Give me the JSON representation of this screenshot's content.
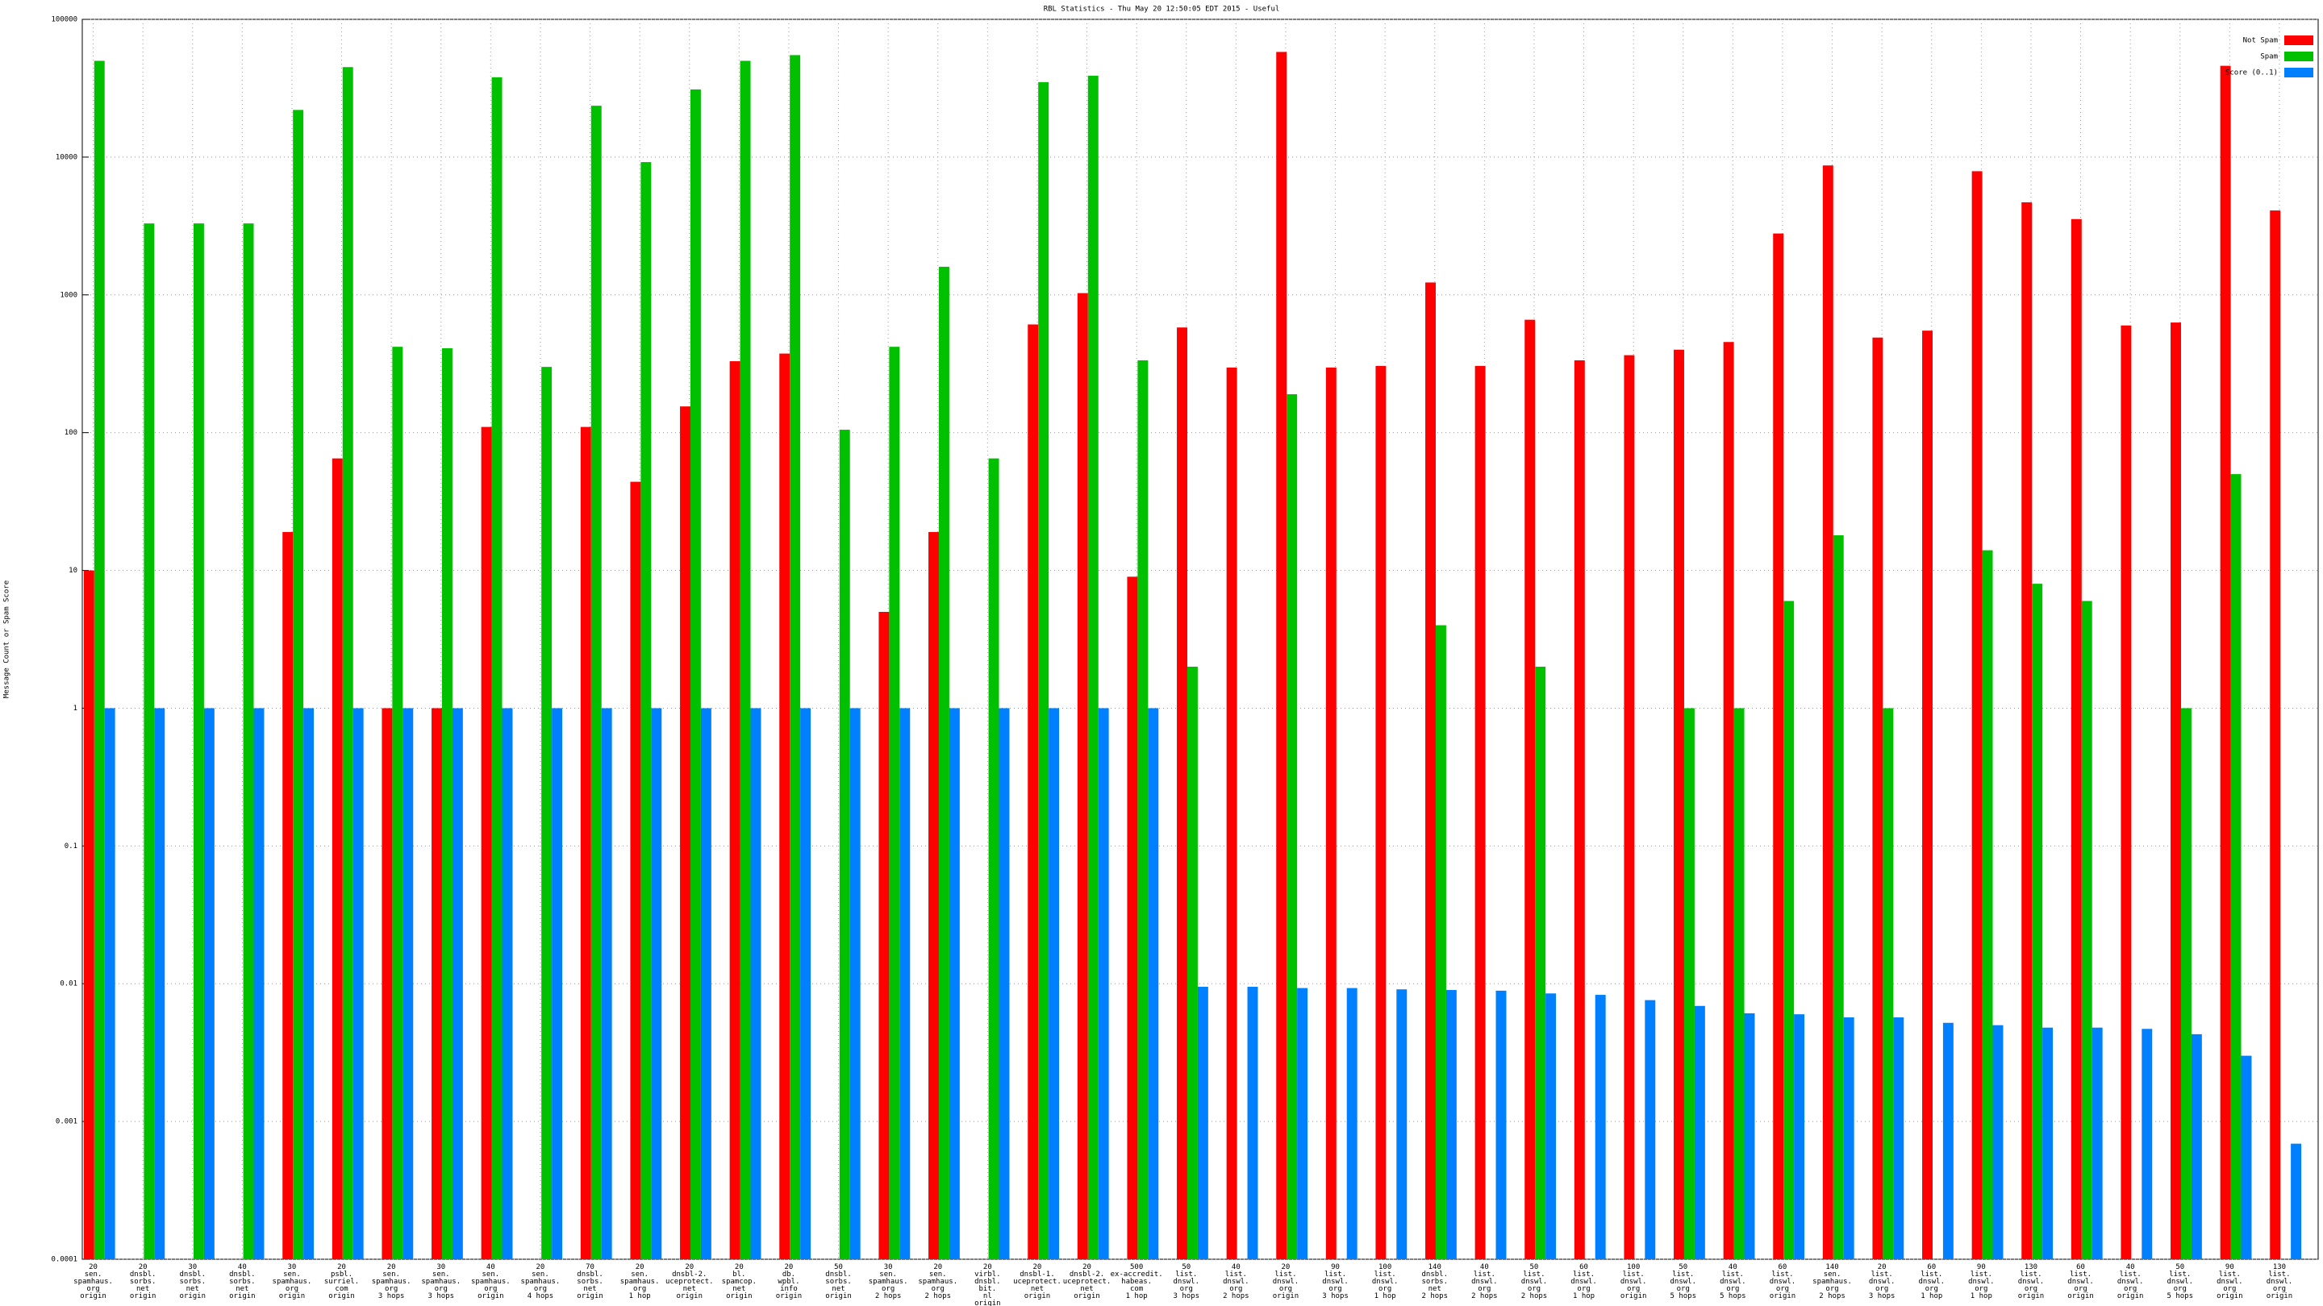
{
  "chart_data": {
    "type": "bar",
    "title": "RBL Statistics - Thu May 20 12:50:05 EDT 2015 - Useful",
    "y_label": "Message Count or Spam Score",
    "log_scale": true,
    "grid": true,
    "legend": "top-right",
    "ylim": [
      0.0001,
      100000
    ],
    "yticks": [
      0.0001,
      0.001,
      0.01,
      0.1,
      1,
      10,
      100,
      1000,
      10000,
      100000
    ],
    "categories": [
      "20\nsen.\nspamhaus.\norg\norigin",
      "20\ndnsbl.\nsorbs.\nnet\norigin",
      "30\ndnsbl.\nsorbs.\nnet\norigin",
      "40\ndnsbl.\nsorbs.\nnet\norigin",
      "30\nsen.\nspamhaus.\norg\norigin",
      "20\npsbl.\nsurriel.\ncom\norigin",
      "20\nsen.\nspamhaus.\norg\n3 hops",
      "30\nsen.\nspamhaus.\norg\n3 hops",
      "40\nsen.\nspamhaus.\norg\norigin",
      "20\nsen.\nspamhaus.\norg\n4 hops",
      "70\ndnsbl.\nsorbs.\nnet\norigin",
      "20\nsen.\nspamhaus.\norg\n1 hop",
      "20\ndnsbl-2.\nuceprotect.\nnet\norigin",
      "20\nbl.\nspamcop.\nnet\norigin",
      "20\ndb.\nwpbl.\ninfo\norigin",
      "50\ndnsbl.\nsorbs.\nnet\norigin",
      "30\nsen.\nspamhaus.\norg\n2 hops",
      "20\nsen.\nspamhaus.\norg\n2 hops",
      "20\nvirbl.\ndnsbl.\nbit.\nnl\norigin",
      "20\ndnsbl-1.\nuceprotect.\nnet\norigin",
      "20\ndnsbl-2.\nuceprotect.\nnet\norigin",
      "500\nex-accredit.\nhabeas.\ncom\n1 hop",
      "50\nlist.\ndnswl.\norg\n3 hops",
      "40\nlist.\ndnswl.\norg\n2 hops",
      "20\nlist.\ndnswl.\norg\norigin",
      "90\nlist.\ndnswl.\norg\n3 hops",
      "100\nlist.\ndnswl.\norg\n1 hop",
      "140\ndnsbl.\nsorbs.\nnet\n2 hops",
      "40\nlist.\ndnswl.\norg\n2 hops",
      "50\nlist.\ndnswl.\norg\n2 hops",
      "60\nlist.\ndnswl.\norg\n1 hop",
      "100\nlist.\ndnswl.\norg\norigin",
      "50\nlist.\ndnswl.\norg\n5 hops",
      "40\nlist.\ndnswl.\norg\n5 hops",
      "60\nlist.\ndnswl.\norg\norigin",
      "140\nsen.\nspamhaus.\norg\n2 hops",
      "20\nlist.\ndnswl.\norg\n3 hops",
      "60\nlist.\ndnswl.\norg\n1 hop",
      "90\nlist.\ndnswl.\norg\n1 hop",
      "130\nlist.\ndnswl.\norg\norigin",
      "60\nlist.\ndnswl.\norg\norigin",
      "40\nlist.\ndnswl.\norg\norigin",
      "50\nlist.\ndnswl.\norg\n5 hops",
      "90\nlist.\ndnswl.\norg\norigin",
      "130\nlist.\ndnswl.\norg\norigin"
    ],
    "series": [
      {
        "name": "Not Spam",
        "color": "#ff0000",
        "values": [
          10,
          null,
          null,
          null,
          19,
          65,
          1,
          1,
          110,
          null,
          110,
          44,
          155,
          330,
          375,
          null,
          5,
          19,
          null,
          610,
          1030,
          9,
          580,
          297,
          58000,
          297,
          305,
          1230,
          305,
          660,
          335,
          365,
          400,
          455,
          2790,
          8700,
          490,
          550,
          7900,
          4700,
          3550,
          600,
          630,
          46000,
          4100
        ]
      },
      {
        "name": "Spam",
        "color": "#00c000",
        "values": [
          50000,
          3300,
          3300,
          3300,
          22000,
          45000,
          420,
          410,
          38000,
          300,
          23600,
          9200,
          31000,
          50000,
          55000,
          105,
          420,
          1600,
          65,
          35000,
          39000,
          335,
          2,
          null,
          190,
          null,
          null,
          4,
          null,
          2,
          null,
          null,
          1,
          1,
          6,
          18,
          1,
          null,
          14,
          8,
          6,
          null,
          1,
          50,
          null
        ]
      },
      {
        "name": "Score (0..1)",
        "color": "#0080ff",
        "values": [
          1,
          1,
          1,
          1,
          1,
          1,
          1,
          1,
          1,
          1,
          1,
          1,
          1,
          1,
          1,
          1,
          1,
          1,
          1,
          1,
          1,
          1,
          0.0095,
          0.0095,
          0.0093,
          0.0093,
          0.0091,
          0.009,
          0.0089,
          0.0085,
          0.0083,
          0.0076,
          0.0069,
          0.0061,
          0.006,
          0.0057,
          0.0057,
          0.0052,
          0.005,
          0.0048,
          0.0048,
          0.0047,
          0.0043,
          0.003,
          0.00069
        ]
      }
    ]
  }
}
